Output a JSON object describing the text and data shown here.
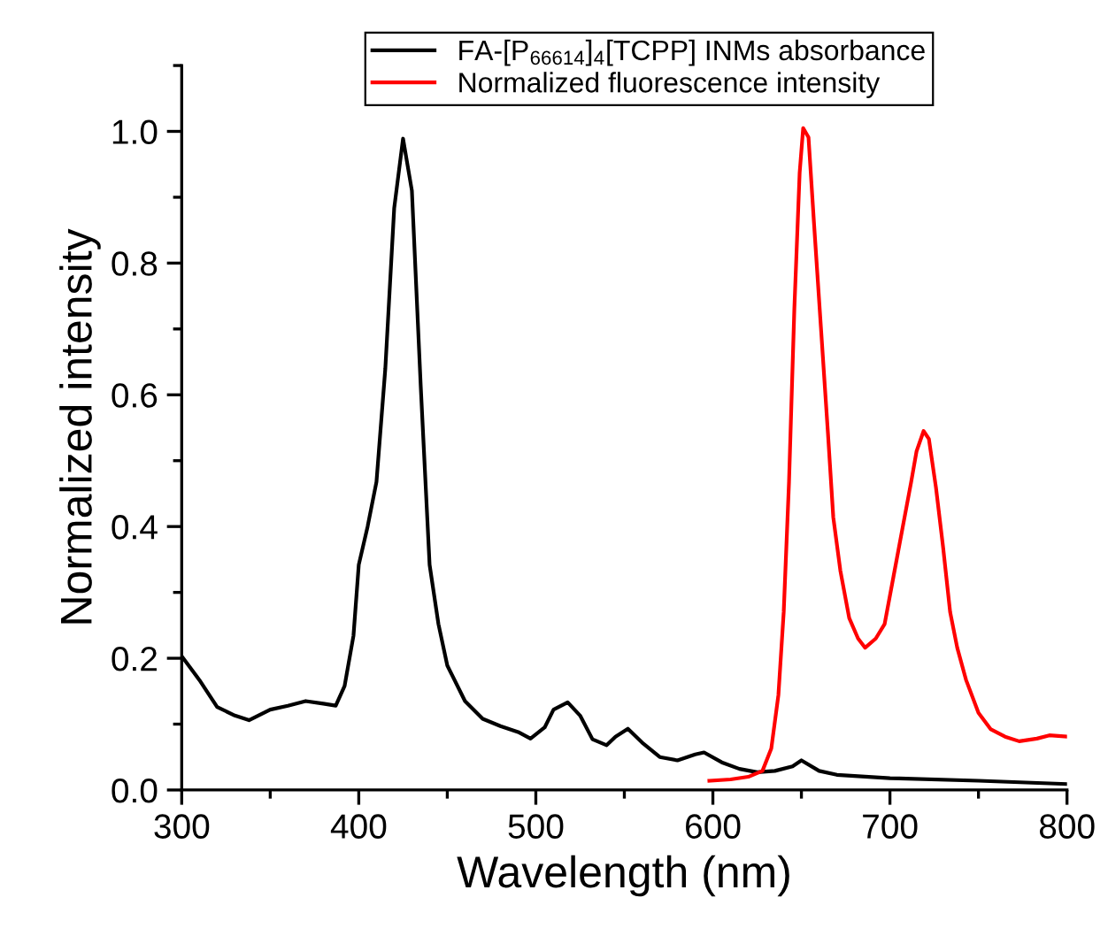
{
  "chart_data": {
    "type": "line",
    "xlabel": "Wavelength (nm)",
    "ylabel": "Normalized intensity",
    "xlim": [
      300,
      800
    ],
    "xticks": [
      300,
      400,
      500,
      600,
      700,
      800
    ],
    "ylim": [
      0,
      1.1
    ],
    "yticks": [
      {
        "value": 0,
        "label": "0.0"
      },
      0.2,
      0.4,
      0.6,
      0.8,
      {
        "value": 1,
        "label": "1.0"
      }
    ],
    "grid": false,
    "legend": "top",
    "marker": "none",
    "line_style": "solid",
    "series": [
      {
        "name": "FA-[P$_{66614}$]$_{4}$[TCPP] INMs absorbance",
        "color": "#000000",
        "x": [
          300,
          310,
          320,
          330,
          338,
          350,
          360,
          370,
          380,
          387,
          392,
          397,
          400,
          405,
          410,
          415,
          420,
          425,
          430,
          435,
          440,
          445,
          450,
          460,
          470,
          480,
          490,
          497,
          505,
          510,
          518,
          525,
          532,
          540,
          545,
          552,
          560,
          570,
          580,
          590,
          595,
          605,
          615,
          625,
          635,
          645,
          650,
          660,
          670,
          700,
          750,
          800
        ],
        "values": [
          0.203,
          0.167,
          0.126,
          0.113,
          0.106,
          0.122,
          0.128,
          0.135,
          0.131,
          0.128,
          0.158,
          0.234,
          0.342,
          0.4,
          0.468,
          0.64,
          0.883,
          0.989,
          0.91,
          0.613,
          0.342,
          0.252,
          0.189,
          0.135,
          0.108,
          0.097,
          0.088,
          0.078,
          0.095,
          0.122,
          0.133,
          0.113,
          0.077,
          0.068,
          0.081,
          0.093,
          0.072,
          0.05,
          0.045,
          0.054,
          0.057,
          0.042,
          0.032,
          0.027,
          0.029,
          0.036,
          0.045,
          0.029,
          0.023,
          0.018,
          0.014,
          0.009
        ]
      },
      {
        "name": "Normalized fluorescence intensity",
        "color": "#ff0000",
        "x": [
          598,
          610,
          620,
          628,
          633,
          637,
          640,
          643,
          646,
          649,
          651,
          654,
          657,
          661,
          665,
          668,
          672,
          677,
          682,
          686,
          692,
          697,
          702,
          707,
          712,
          715,
          719,
          722,
          726,
          730,
          734,
          738,
          743,
          750,
          757,
          765,
          773,
          783,
          790,
          800
        ],
        "values": [
          0.014,
          0.016,
          0.02,
          0.029,
          0.063,
          0.144,
          0.27,
          0.468,
          0.73,
          0.937,
          1.005,
          0.991,
          0.865,
          0.703,
          0.541,
          0.414,
          0.333,
          0.261,
          0.23,
          0.216,
          0.23,
          0.252,
          0.324,
          0.396,
          0.468,
          0.514,
          0.545,
          0.533,
          0.459,
          0.369,
          0.27,
          0.216,
          0.167,
          0.117,
          0.092,
          0.081,
          0.074,
          0.078,
          0.083,
          0.081
        ]
      }
    ]
  }
}
